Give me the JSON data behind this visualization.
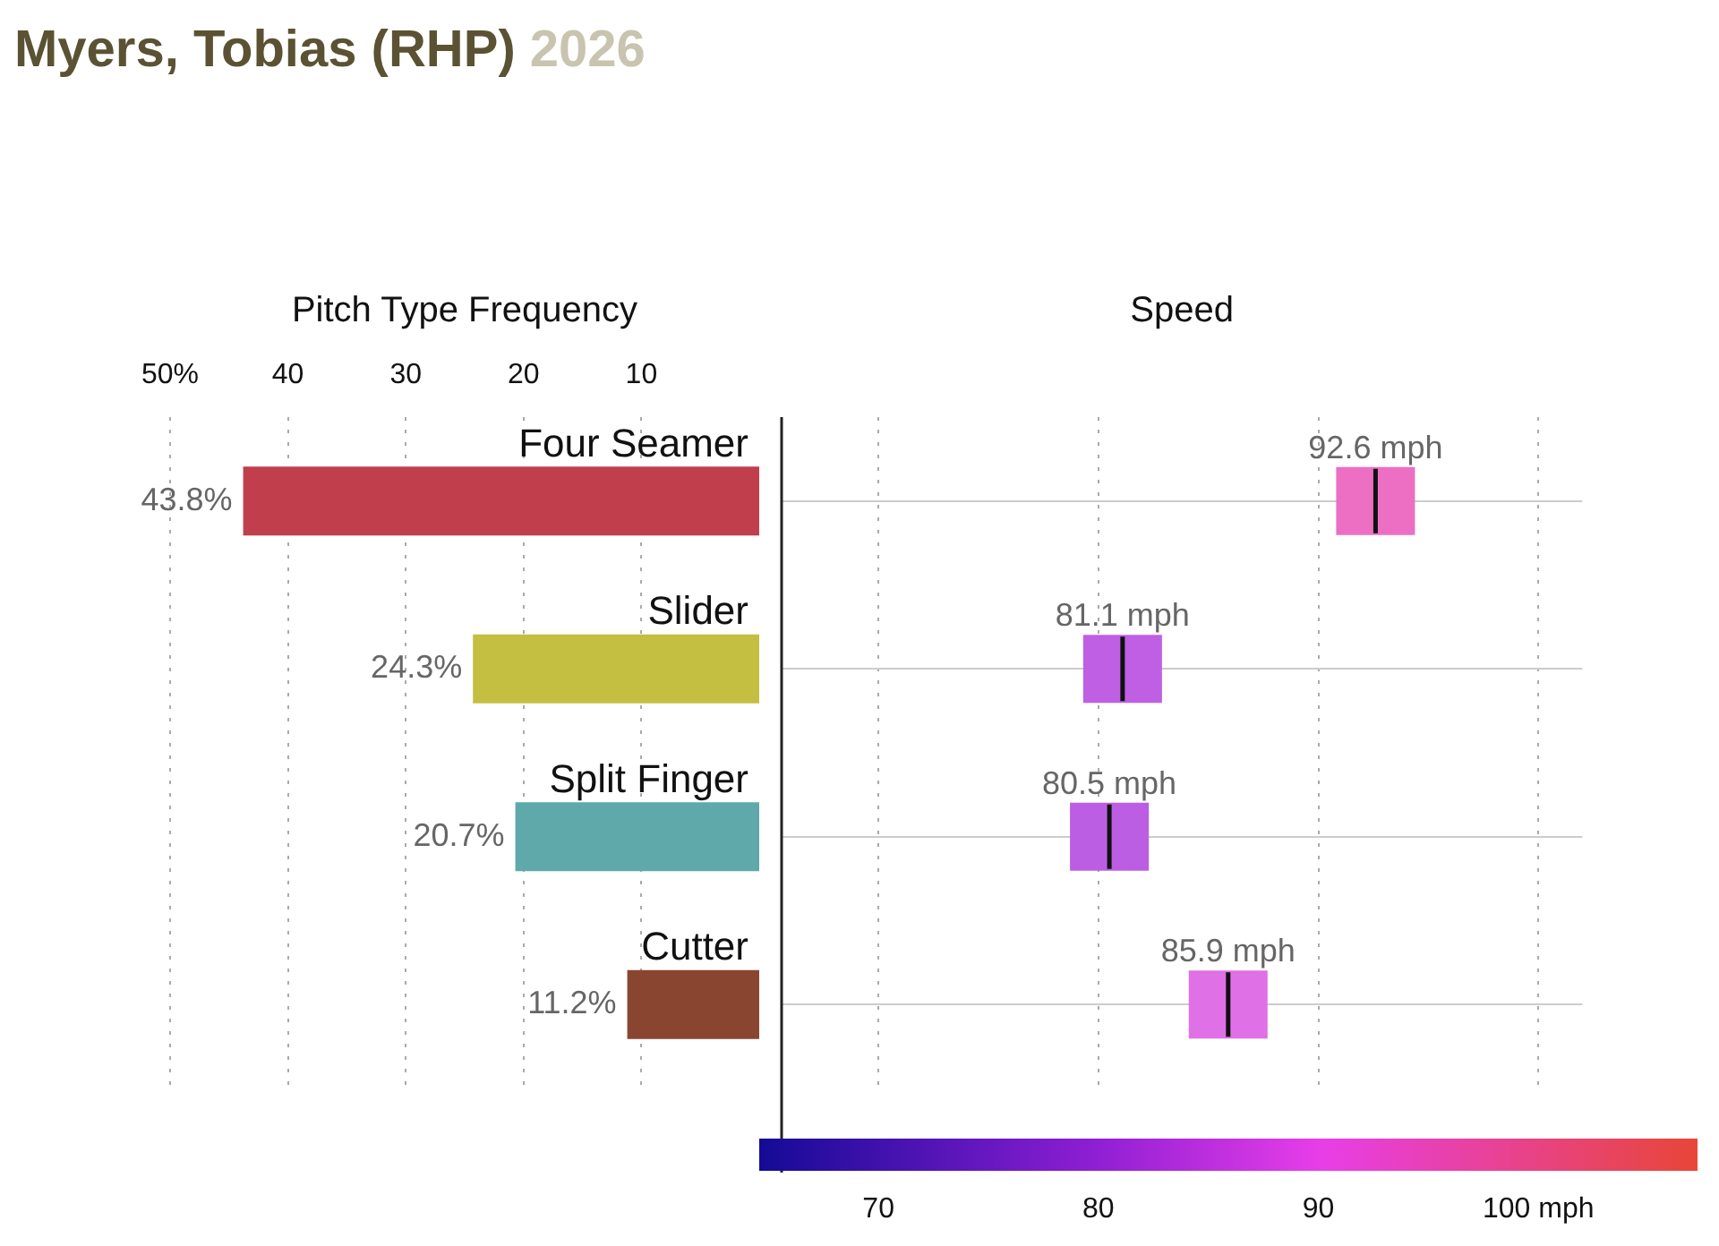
{
  "chart_data": [
    {
      "type": "bar",
      "orientation": "horizontal",
      "title": "Myers, Tobias (RHP)",
      "subtitle": "2026",
      "xlabel": "Pitch Type Frequency",
      "categories": [
        "Four Seamer",
        "Slider",
        "Split Finger",
        "Cutter"
      ],
      "values": [
        43.8,
        24.3,
        20.7,
        11.2
      ],
      "colors": [
        "#c13f4c",
        "#c4bf40",
        "#5fa9aa",
        "#8a4530"
      ],
      "value_labels": [
        "43.8%",
        "24.3%",
        "20.7%",
        "11.2%"
      ],
      "xlim": [
        50,
        0
      ],
      "xticks": [
        {
          "value": 50,
          "label": "50%"
        },
        40,
        30,
        20,
        10
      ],
      "grid": "x",
      "legend": false
    },
    {
      "type": "scatter",
      "orientation": "horizontal",
      "xlabel": "Speed",
      "categories": [
        null,
        null,
        null,
        null
      ],
      "values": [
        92.6,
        81.1,
        80.5,
        85.9
      ],
      "colors": [
        "#ec6fc4",
        "#be5fe4",
        "#bb5ee4",
        "#e070e6"
      ],
      "value_labels": [
        "92.6 mph",
        "81.1 mph",
        "80.5 mph",
        "85.9 mph"
      ],
      "xlim": [
        65.6,
        102
      ],
      "xticks": [
        70,
        80,
        90,
        {
          "value": 100,
          "label": "100 mph"
        }
      ],
      "grid": true,
      "tick_labels": "x",
      "legend": false
    }
  ]
}
